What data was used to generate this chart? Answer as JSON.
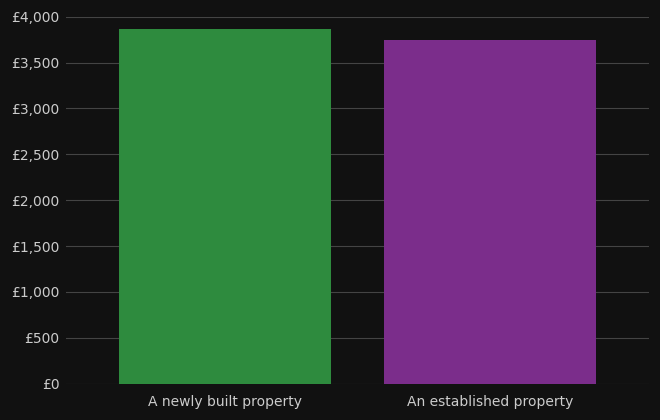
{
  "categories": [
    "A newly built property",
    "An established property"
  ],
  "values": [
    3870,
    3750
  ],
  "bar_colors": [
    "#2e8b3e",
    "#7b2d8b"
  ],
  "background_color": "#111111",
  "text_color": "#cccccc",
  "grid_color": "#444444",
  "ylim": [
    0,
    4000
  ],
  "ytick_interval": 500,
  "figsize": [
    6.6,
    4.2
  ],
  "dpi": 100
}
